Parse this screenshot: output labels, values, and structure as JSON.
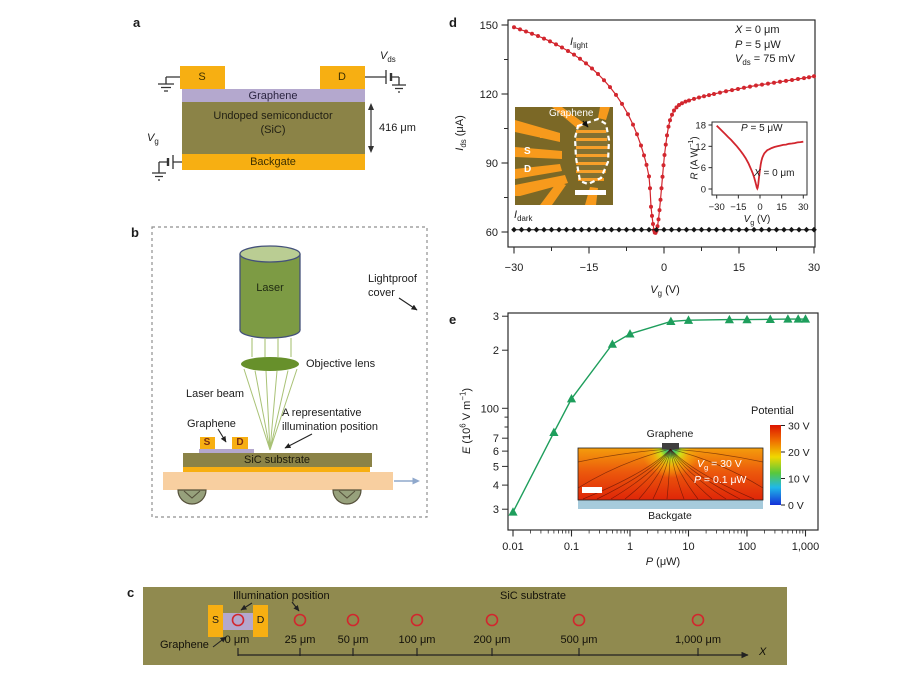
{
  "colors": {
    "gold": "#F7AF12",
    "graphene_purple": "#B4A8CE",
    "sic_olive": "#8B8347",
    "substrate_olive": "#908A4F",
    "accent_red": "#D2262E",
    "accent_green": "#1E9E5C",
    "laser_green": "#7D9B44",
    "laser_top_green": "#BACD93",
    "lens_green": "#67902B",
    "beam_green": "#A9C276",
    "stage_peach": "#F8CFA0",
    "backgate_blue": "#A6CBDC",
    "micrograph_bg": "#7B6826",
    "micrograph_orange": "#F79A1C",
    "ink": "#1c1c1c"
  },
  "panel_labels": {
    "a": "a",
    "b": "b",
    "c": "c",
    "d": "d",
    "e": "e"
  },
  "panel_a": {
    "s": "S",
    "d": "D",
    "graphene": "Graphene",
    "body1": "Undoped semiconductor",
    "body2": "(SiC)",
    "backgate": "Backgate",
    "thickness": "416 μm",
    "vds": [
      {
        "t": "V",
        "i": 1
      },
      {
        "t": "ds",
        "sub": 1
      }
    ],
    "vg": [
      {
        "t": "V",
        "i": 1
      },
      {
        "t": "g",
        "sub": 1
      }
    ]
  },
  "panel_b": {
    "laser": "Laser",
    "lightproof1": "Lightproof",
    "lightproof2": "cover",
    "objective": "Objective lens",
    "beam": "Laser beam",
    "rep1": "A representative",
    "rep2": "illumination position",
    "graphene": "Graphene",
    "s": "S",
    "d": "D",
    "sic": "SiC substrate"
  },
  "panel_c": {
    "illumination": "Illumination position",
    "sic": "SiC substrate",
    "s": "S",
    "d": "D",
    "graphene": "Graphene",
    "positions": [
      "0 μm",
      "25 μm",
      "50 μm",
      "100 μm",
      "200 μm",
      "500 μm",
      "1,000 μm"
    ],
    "x_axis": "X"
  },
  "chart_data": {
    "d": {
      "type": "line",
      "xlabel": [
        {
          "t": "V",
          "i": 1
        },
        {
          "t": "g",
          "sub": 1
        },
        {
          "t": " (V)"
        }
      ],
      "ylabel": [
        {
          "t": "I",
          "i": 1
        },
        {
          "t": "ds",
          "sub": 1
        },
        {
          "t": " (μA)"
        }
      ],
      "xlim": [
        -30,
        30
      ],
      "ylim": [
        54,
        152
      ],
      "xticks": [
        {
          "v": -30,
          "l": "−30"
        },
        {
          "v": -15,
          "l": "−15"
        },
        {
          "v": 0,
          "l": "0"
        },
        {
          "v": 15,
          "l": "15"
        },
        {
          "v": 30,
          "l": "30"
        }
      ],
      "yticks": [
        {
          "v": 60,
          "l": "60"
        },
        {
          "v": 90,
          "l": "90"
        },
        {
          "v": 120,
          "l": "120"
        },
        {
          "v": 150,
          "l": "150"
        }
      ],
      "xminor": [
        -22.5,
        -7.5,
        7.5,
        22.5
      ],
      "yminor": [
        75,
        105,
        135
      ],
      "annotations": [
        [
          {
            "t": "X",
            "i": 1
          },
          {
            "t": " = 0 μm"
          }
        ],
        [
          {
            "t": "P",
            "i": 1
          },
          {
            "t": " = 5 μW"
          }
        ],
        [
          {
            "t": "V",
            "i": 1
          },
          {
            "t": "ds",
            "sub": 1
          },
          {
            "t": " = 75 mV"
          }
        ]
      ],
      "series": [
        {
          "name": [
            {
              "t": "I",
              "i": 1
            },
            {
              "t": "light",
              "sub": 1
            }
          ],
          "color": "#D2262E",
          "marker": "dot",
          "points": [
            [
              -30,
              149
            ],
            [
              -28.8,
              148.1
            ],
            [
              -27.6,
              147.2
            ],
            [
              -26.4,
              146.2
            ],
            [
              -25.2,
              145.2
            ],
            [
              -24,
              144.1
            ],
            [
              -22.8,
              142.9
            ],
            [
              -21.6,
              141.6
            ],
            [
              -20.4,
              140.2
            ],
            [
              -19.2,
              138.7
            ],
            [
              -18,
              137.1
            ],
            [
              -16.8,
              135.3
            ],
            [
              -15.6,
              133.3
            ],
            [
              -14.4,
              131.1
            ],
            [
              -13.2,
              128.7
            ],
            [
              -12,
              126
            ],
            [
              -10.8,
              123
            ],
            [
              -9.6,
              119.6
            ],
            [
              -8.4,
              115.7
            ],
            [
              -7.2,
              111.2
            ],
            [
              -6.2,
              106.7
            ],
            [
              -5.4,
              102.5
            ],
            [
              -4.6,
              97.6
            ],
            [
              -4,
              93.3
            ],
            [
              -3.5,
              89.2
            ],
            [
              -3,
              84.2
            ],
            [
              -2.8,
              79
            ],
            [
              -2.6,
              71
            ],
            [
              -2.4,
              67
            ],
            [
              -2.2,
              63.5
            ],
            [
              -2,
              60.8
            ],
            [
              -1.85,
              59.8
            ],
            [
              -1.7,
              59.6
            ],
            [
              -1.5,
              60.5
            ],
            [
              -1.3,
              62.5
            ],
            [
              -1.1,
              65.5
            ],
            [
              -0.9,
              69.5
            ],
            [
              -0.7,
              74
            ],
            [
              -0.5,
              79
            ],
            [
              -0.3,
              84
            ],
            [
              -0.1,
              89
            ],
            [
              0.1,
              93.5
            ],
            [
              0.35,
              98
            ],
            [
              0.6,
              102
            ],
            [
              0.9,
              105.8
            ],
            [
              1.2,
              108.6
            ],
            [
              1.6,
              111
            ],
            [
              2,
              112.8
            ],
            [
              2.5,
              114.2
            ],
            [
              3,
              115.2
            ],
            [
              3.6,
              116
            ],
            [
              4.3,
              116.7
            ],
            [
              5,
              117.2
            ],
            [
              6,
              117.9
            ],
            [
              7,
              118.5
            ],
            [
              8,
              119
            ],
            [
              9,
              119.5
            ],
            [
              10,
              120
            ],
            [
              11.2,
              120.6
            ],
            [
              12.4,
              121.2
            ],
            [
              13.6,
              121.7
            ],
            [
              14.8,
              122.2
            ],
            [
              16,
              122.7
            ],
            [
              17.2,
              123.2
            ],
            [
              18.4,
              123.7
            ],
            [
              19.6,
              124.1
            ],
            [
              20.8,
              124.5
            ],
            [
              22,
              124.9
            ],
            [
              23.2,
              125.3
            ],
            [
              24.4,
              125.7
            ],
            [
              25.6,
              126.1
            ],
            [
              26.8,
              126.5
            ],
            [
              28,
              126.9
            ],
            [
              29,
              127.3
            ],
            [
              30,
              127.7
            ]
          ]
        },
        {
          "name": [
            {
              "t": "I",
              "i": 1
            },
            {
              "t": "dark",
              "sub": 1
            }
          ],
          "color": "#141414",
          "marker": "diamond",
          "flat": {
            "y": 61,
            "x_from": -30,
            "x_to": 30,
            "count": 41
          }
        }
      ],
      "inset_micrograph": {
        "graphene": "Graphene",
        "s": "S",
        "d": "D"
      },
      "inset_chart": {
        "xlabel": [
          {
            "t": "V",
            "i": 1
          },
          {
            "t": "g",
            "sub": 1
          },
          {
            "t": " (V)"
          }
        ],
        "ylabel": [
          {
            "t": "R",
            "i": 1
          },
          {
            "t": " (A W"
          },
          {
            "t": "−1",
            "sup": 1
          },
          {
            "t": ")"
          }
        ],
        "xticks": [
          {
            "v": -30,
            "l": "−30"
          },
          {
            "v": -15,
            "l": "−15"
          },
          {
            "v": 0,
            "l": "0"
          },
          {
            "v": 15,
            "l": "15"
          },
          {
            "v": 30,
            "l": "30"
          }
        ],
        "yticks": [
          {
            "v": 0,
            "l": "0"
          },
          {
            "v": 6,
            "l": "6"
          },
          {
            "v": 12,
            "l": "12"
          },
          {
            "v": 18,
            "l": "18"
          }
        ],
        "labels": [
          [
            {
              "t": "P",
              "i": 1
            },
            {
              "t": " = 5 μW"
            }
          ],
          [
            {
              "t": "X",
              "i": 1
            },
            {
              "t": " = 0 μm"
            }
          ]
        ],
        "color": "#D2262E",
        "points": [
          [
            -30,
            17.8
          ],
          [
            -28,
            17
          ],
          [
            -26,
            16.2
          ],
          [
            -24,
            15.4
          ],
          [
            -22,
            14.6
          ],
          [
            -20,
            13.8
          ],
          [
            -18,
            12.9
          ],
          [
            -16,
            12
          ],
          [
            -14,
            11
          ],
          [
            -12,
            9.9
          ],
          [
            -10,
            8.7
          ],
          [
            -8,
            7.2
          ],
          [
            -7,
            6.3
          ],
          [
            -6,
            5.4
          ],
          [
            -5,
            4.4
          ],
          [
            -4,
            3.2
          ],
          [
            -3.3,
            2.2
          ],
          [
            -2.7,
            1.2
          ],
          [
            -2.2,
            0.4
          ],
          [
            -1.9,
            0.1
          ],
          [
            -1.6,
            0.4
          ],
          [
            -1.2,
            1.4
          ],
          [
            -0.8,
            2.8
          ],
          [
            -0.4,
            4.2
          ],
          [
            0,
            5.5
          ],
          [
            0.5,
            6.9
          ],
          [
            1,
            7.9
          ],
          [
            1.6,
            8.8
          ],
          [
            2.2,
            9.4
          ],
          [
            3,
            10
          ],
          [
            4,
            10.5
          ],
          [
            5,
            10.9
          ],
          [
            6.5,
            11.2
          ],
          [
            8,
            11.5
          ],
          [
            10,
            11.8
          ],
          [
            12,
            12
          ],
          [
            14,
            12.2
          ],
          [
            16,
            12.4
          ],
          [
            18,
            12.5
          ],
          [
            20,
            12.7
          ],
          [
            22,
            12.8
          ],
          [
            24,
            12.9
          ],
          [
            26,
            13.1
          ],
          [
            28,
            13.2
          ],
          [
            30,
            13.3
          ]
        ]
      }
    },
    "e": {
      "type": "line-log",
      "xlabel": [
        {
          "t": "P",
          "i": 1
        },
        {
          "t": " (μW)"
        }
      ],
      "ylabel": [
        {
          "t": "E",
          "i": 1
        },
        {
          "t": " (10"
        },
        {
          "t": "6",
          "sup": 1
        },
        {
          "t": " V m"
        },
        {
          "t": "−1",
          "sup": 1
        },
        {
          "t": ")"
        }
      ],
      "xlim": [
        0.008,
        1500
      ],
      "ylim": [
        23,
        310
      ],
      "xticks": [
        {
          "v": 0.01,
          "l": "0.01"
        },
        {
          "v": 0.1,
          "l": "0.1"
        },
        {
          "v": 1,
          "l": "1"
        },
        {
          "v": 10,
          "l": "10"
        },
        {
          "v": 100,
          "l": "100"
        },
        {
          "v": 1000,
          "l": "1,000"
        }
      ],
      "yticks": [
        {
          "v": 30,
          "l": "3"
        },
        {
          "v": 40,
          "l": "4"
        },
        {
          "v": 50,
          "l": "5"
        },
        {
          "v": 60,
          "l": "6"
        },
        {
          "v": 70,
          "l": "7"
        },
        {
          "v": 80,
          "l": ""
        },
        {
          "v": 90,
          "l": ""
        },
        {
          "v": 100,
          "l": "100"
        },
        {
          "v": 200,
          "l": "2"
        },
        {
          "v": 300,
          "l": "3"
        }
      ],
      "color": "#1E9E5C",
      "points": [
        [
          0.01,
          29
        ],
        [
          0.05,
          75
        ],
        [
          0.1,
          112
        ],
        [
          0.5,
          215
        ],
        [
          1,
          243
        ],
        [
          5,
          282
        ],
        [
          10,
          286
        ],
        [
          50,
          288
        ],
        [
          100,
          288
        ],
        [
          250,
          289
        ],
        [
          500,
          290
        ],
        [
          750,
          290
        ],
        [
          1000,
          290
        ]
      ],
      "inset": {
        "title": "Potential",
        "graphene": "Graphene",
        "backgate": "Backgate",
        "vg": [
          {
            "t": "V",
            "i": 1
          },
          {
            "t": "g",
            "sub": 1
          },
          {
            "t": " = 30 V"
          }
        ],
        "p": [
          {
            "t": "P",
            "i": 1
          },
          {
            "t": " = 0.1 μW"
          }
        ],
        "colorbar": [
          "30 V",
          "20 V",
          "10 V",
          "0 V"
        ]
      }
    }
  }
}
